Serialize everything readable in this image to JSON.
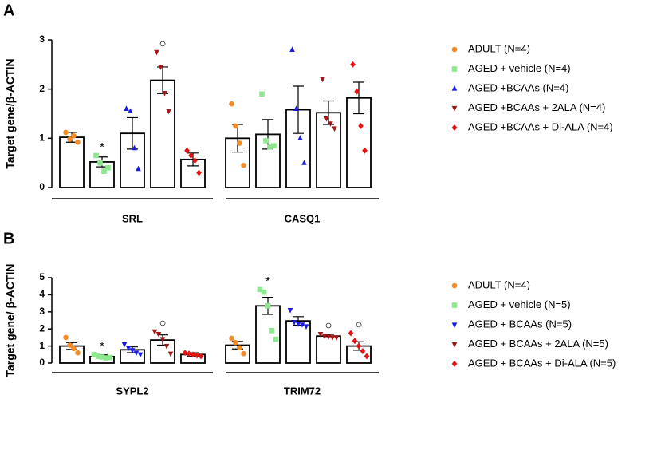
{
  "chart_data": [
    {
      "type": "bar",
      "panel_label": "A",
      "y_label": "Target gene/β-ACTIN",
      "categories": [
        "SRL",
        "CASQ1"
      ],
      "ylim": [
        0,
        3
      ],
      "yticks": [
        0,
        1,
        2,
        3
      ],
      "series": [
        {
          "name": "ADULT (N=4)",
          "color": "#f28c28",
          "marker": "circle",
          "values": [
            1.02,
            1.0
          ],
          "errors": [
            0.1,
            0.28
          ],
          "points": [
            [
              1.12,
              0.98,
              1.05,
              0.92
            ],
            [
              1.7,
              1.25,
              0.9,
              0.45
            ]
          ],
          "annotations": [
            null,
            null
          ]
        },
        {
          "name": "AGED + vehicle (N=4)",
          "color": "#8ee88e",
          "marker": "square",
          "values": [
            0.52,
            1.08
          ],
          "errors": [
            0.1,
            0.3
          ],
          "points": [
            [
              0.65,
              0.5,
              0.33,
              0.4
            ],
            [
              1.9,
              0.95,
              0.82,
              0.85
            ]
          ],
          "annotations": [
            "*",
            null
          ]
        },
        {
          "name": "AGED +BCAAs (N=4)",
          "color": "#1a1ae6",
          "marker": "triangle",
          "values": [
            1.1,
            1.58
          ],
          "errors": [
            0.32,
            0.48
          ],
          "points": [
            [
              1.6,
              1.55,
              0.8,
              0.38
            ],
            [
              2.8,
              1.6,
              1.0,
              0.5
            ]
          ],
          "annotations": [
            null,
            null
          ]
        },
        {
          "name": "AGED +BCAAs + 2ALA (N=4)",
          "color": "#a01818",
          "marker": "triangle-down",
          "values": [
            2.18,
            1.52
          ],
          "errors": [
            0.27,
            0.24
          ],
          "points": [
            [
              2.75,
              2.45,
              1.92,
              1.55
            ],
            [
              2.2,
              1.4,
              1.3,
              1.2
            ]
          ],
          "annotations": [
            "○",
            null
          ]
        },
        {
          "name": "AGED +BCAAs + Di-ALA (N=4)",
          "color": "#e81010",
          "marker": "diamond",
          "values": [
            0.57,
            1.82
          ],
          "errors": [
            0.13,
            0.32
          ],
          "points": [
            [
              0.75,
              0.65,
              0.55,
              0.3
            ],
            [
              2.5,
              1.95,
              1.25,
              0.75
            ]
          ],
          "annotations": [
            null,
            null
          ]
        }
      ]
    },
    {
      "type": "bar",
      "panel_label": "B",
      "y_label": "Target gene/ β-ACTIN",
      "categories": [
        "SYPL2",
        "TRIM72"
      ],
      "ylim": [
        0,
        5
      ],
      "yticks": [
        0,
        1,
        2,
        3,
        4,
        5
      ],
      "series": [
        {
          "name": "ADULT (N=4)",
          "color": "#f28c28",
          "marker": "circle",
          "values": [
            1.0,
            1.05
          ],
          "errors": [
            0.2,
            0.22
          ],
          "points": [
            [
              1.5,
              1.05,
              0.85,
              0.6
            ],
            [
              1.45,
              1.2,
              0.9,
              0.55
            ]
          ],
          "annotations": [
            null,
            null
          ]
        },
        {
          "name": "AGED + vehicle (N=5)",
          "color": "#8ee88e",
          "marker": "square",
          "values": [
            0.38,
            3.35
          ],
          "errors": [
            0.1,
            0.5
          ],
          "points": [
            [
              0.5,
              0.4,
              0.35,
              0.3,
              0.32
            ],
            [
              4.3,
              4.15,
              3.35,
              1.9,
              1.4
            ]
          ],
          "annotations": [
            "*",
            "*"
          ]
        },
        {
          "name": "AGED + BCAAs (N=5)",
          "color": "#1a1ae6",
          "marker": "triangle-down",
          "values": [
            0.78,
            2.47
          ],
          "errors": [
            0.17,
            0.25
          ],
          "points": [
            [
              1.1,
              0.9,
              0.75,
              0.6,
              0.5
            ],
            [
              3.1,
              2.4,
              2.3,
              2.25,
              2.15
            ]
          ],
          "annotations": [
            null,
            null
          ]
        },
        {
          "name": "AGED + BCAAs + 2ALA (N=5)",
          "color": "#a01818",
          "marker": "triangle-down",
          "values": [
            1.35,
            1.58
          ],
          "errors": [
            0.3,
            0.1
          ],
          "points": [
            [
              1.85,
              1.7,
              1.4,
              1.0,
              0.55
            ],
            [
              1.7,
              1.6,
              1.55,
              1.5,
              1.5
            ]
          ],
          "annotations": [
            "○",
            "○"
          ]
        },
        {
          "name": "AGED + BCAAs + Di-ALA (N=5)",
          "color": "#e81010",
          "marker": "diamond",
          "values": [
            0.5,
            1.0
          ],
          "errors": [
            0.1,
            0.25
          ],
          "points": [
            [
              0.6,
              0.55,
              0.5,
              0.45,
              0.4
            ],
            [
              1.75,
              1.3,
              1.0,
              0.7,
              0.4
            ]
          ],
          "annotations": [
            null,
            "○"
          ]
        }
      ]
    }
  ]
}
